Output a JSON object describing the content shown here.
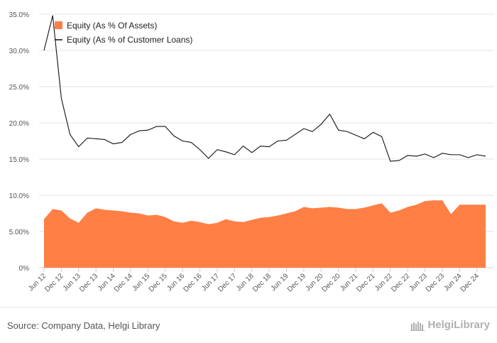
{
  "chart_data": {
    "type": "area",
    "title": "",
    "xlabel": "",
    "ylabel": "",
    "ylim": [
      0,
      35
    ],
    "y_ticks": [
      "0%",
      "5.00%",
      "10.0%",
      "15.0%",
      "20.0%",
      "25.0%",
      "30.0%",
      "35.0%"
    ],
    "y_tick_values": [
      0,
      5,
      10,
      15,
      20,
      25,
      30,
      35
    ],
    "x": [
      "Jun 12",
      "Sep 12",
      "Dec 12",
      "Mar 13",
      "Jun 13",
      "Sep 13",
      "Dec 13",
      "Mar 14",
      "Jun 14",
      "Sep 14",
      "Dec 14",
      "Mar 15",
      "Jun 15",
      "Sep 15",
      "Dec 15",
      "Mar 16",
      "Jun 16",
      "Sep 16",
      "Dec 16",
      "Mar 17",
      "Jun 17",
      "Sep 17",
      "Dec 17",
      "Mar 18",
      "Jun 18",
      "Sep 18",
      "Dec 18",
      "Mar 19",
      "Jun 19",
      "Sep 19",
      "Dec 19",
      "Mar 20",
      "Jun 20",
      "Sep 20",
      "Dec 20",
      "Mar 21",
      "Jun 21",
      "Sep 21",
      "Dec 21",
      "Mar 22",
      "Jun 22",
      "Sep 22",
      "Dec 22",
      "Mar 23",
      "Jun 23",
      "Sep 23",
      "Dec 23",
      "Mar 24",
      "Jun 24",
      "Sep 24",
      "Dec 24",
      "Mar 25"
    ],
    "x_tick_labels": [
      "Jun 12",
      "Dec 12",
      "Jun 13",
      "Dec 13",
      "Jun 14",
      "Dec 14",
      "Jun 15",
      "Dec 15",
      "Jun 16",
      "Dec 16",
      "Jun 17",
      "Dec 17",
      "Jun 18",
      "Dec 18",
      "Jun 19",
      "Dec 19",
      "Jun 20",
      "Dec 20",
      "Jun 21",
      "Dec 21",
      "Jun 22",
      "Dec 22",
      "Jun 23",
      "Dec 23",
      "Jun 24",
      "Dec 24"
    ],
    "series": [
      {
        "name": "Equity (As % Of Assets)",
        "type": "area",
        "color": "#ff7f45",
        "values": [
          6.7,
          8.1,
          7.9,
          6.8,
          6.2,
          7.6,
          8.2,
          8.0,
          7.9,
          7.8,
          7.6,
          7.5,
          7.2,
          7.3,
          7.0,
          6.4,
          6.2,
          6.5,
          6.3,
          6.0,
          6.2,
          6.7,
          6.4,
          6.3,
          6.6,
          6.9,
          7.0,
          7.2,
          7.5,
          7.8,
          8.4,
          8.2,
          8.3,
          8.4,
          8.3,
          8.1,
          8.1,
          8.3,
          8.6,
          8.9,
          7.6,
          7.9,
          8.4,
          8.7,
          9.2,
          9.3,
          9.3,
          7.4,
          8.7,
          8.7,
          8.7,
          8.7
        ]
      },
      {
        "name": "Equity (As % of Customer Loans)",
        "type": "line",
        "color": "#111111",
        "values": [
          30.0,
          34.8,
          23.4,
          18.4,
          16.7,
          17.9,
          17.8,
          17.7,
          17.1,
          17.3,
          18.4,
          18.9,
          19.0,
          19.5,
          19.5,
          18.2,
          17.5,
          17.3,
          16.3,
          15.1,
          16.3,
          16.0,
          15.6,
          16.8,
          15.9,
          16.8,
          16.7,
          17.5,
          17.6,
          18.4,
          19.2,
          18.8,
          19.8,
          21.2,
          19.0,
          18.8,
          18.3,
          17.8,
          18.7,
          18.1,
          14.7,
          14.8,
          15.5,
          15.4,
          15.7,
          15.2,
          15.8,
          15.6,
          15.6,
          15.2,
          15.6,
          15.4
        ]
      }
    ],
    "legend_position": "top-left",
    "grid": true
  },
  "footer": {
    "source": "Source: Company Data, Helgi Library",
    "brand": "HelgiLibrary"
  }
}
